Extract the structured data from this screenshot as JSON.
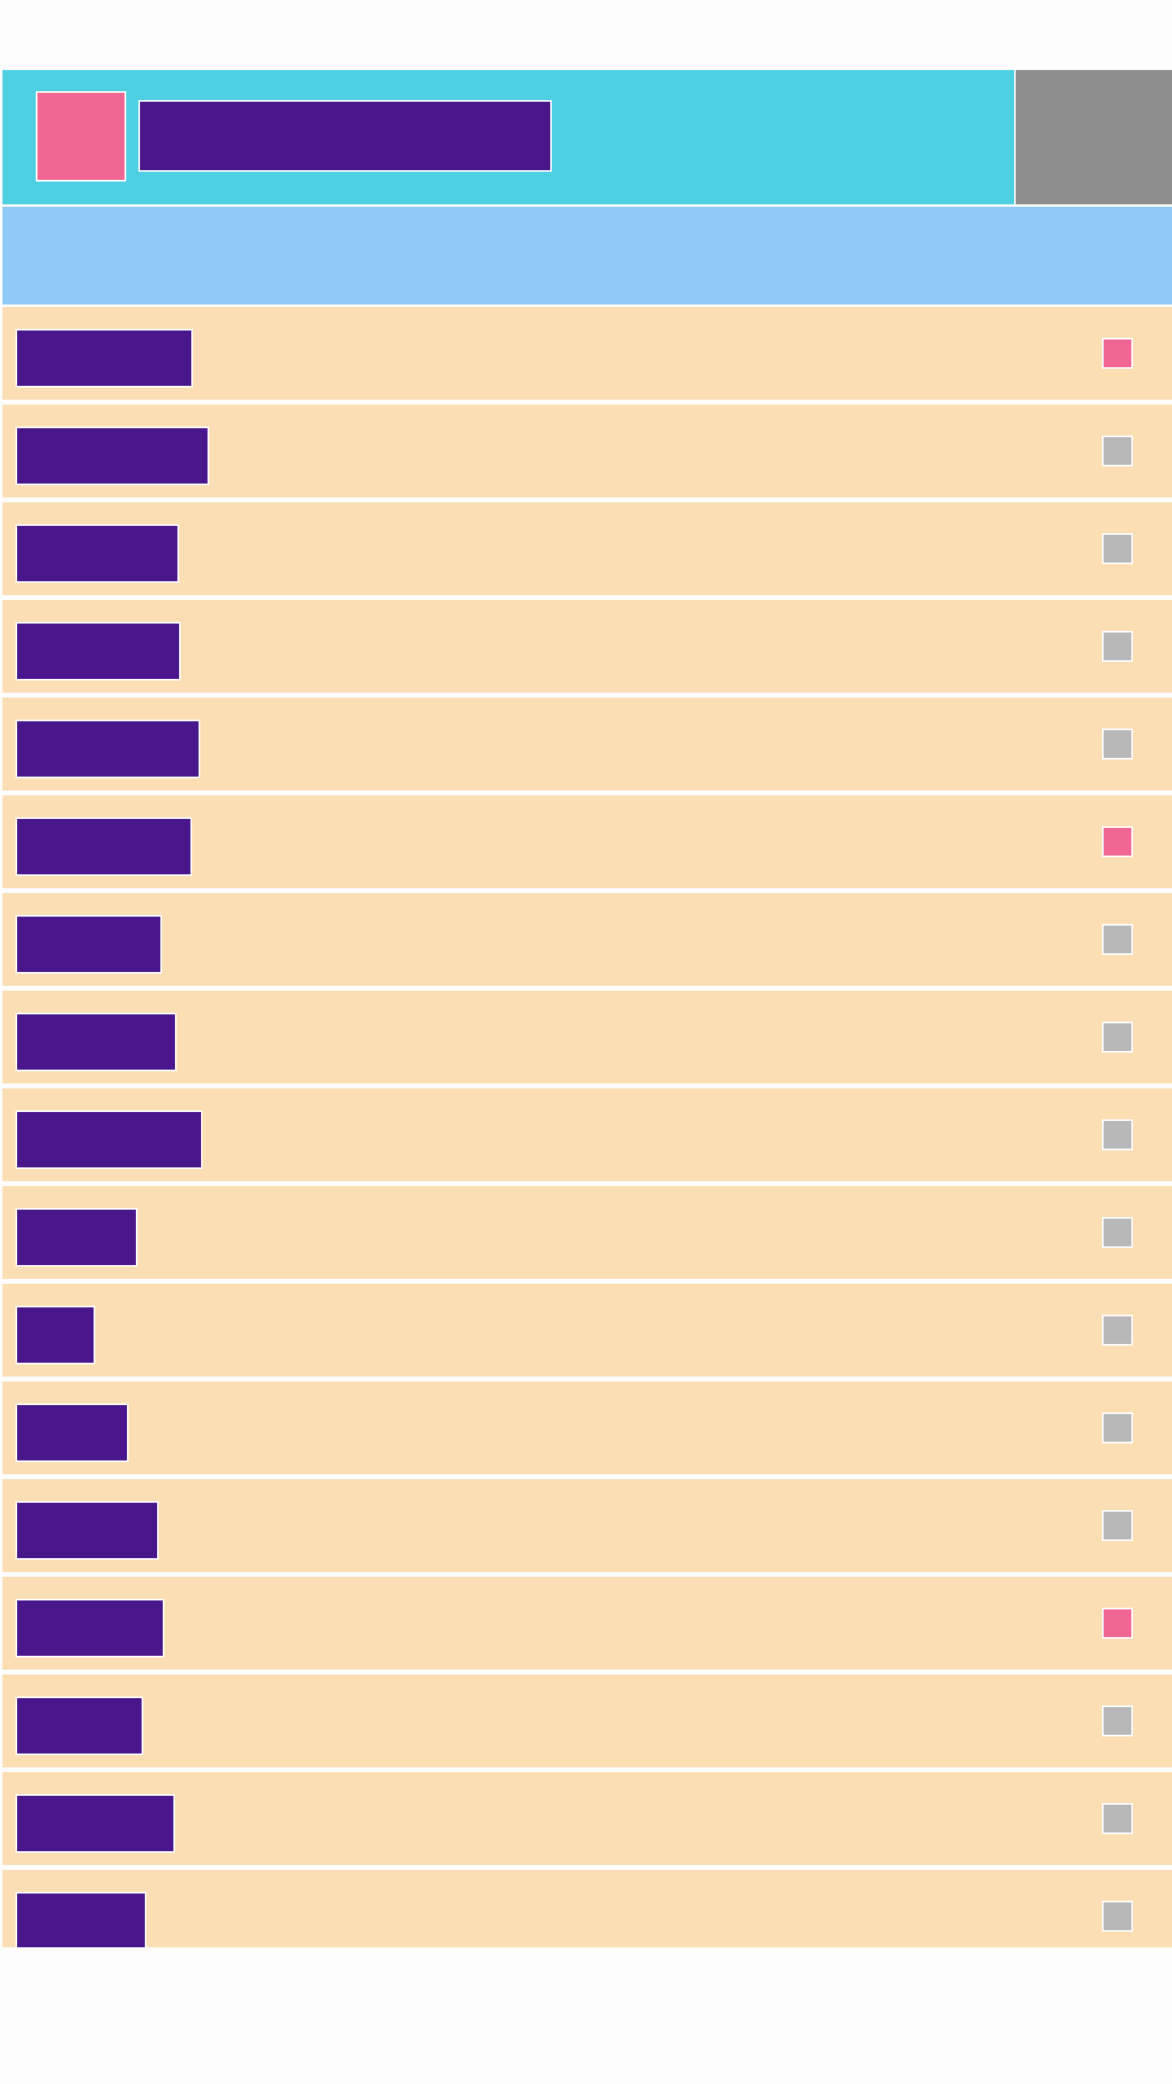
{
  "colors": {
    "app_bar": "#4fd0e2",
    "app_bar_action": "#8e8e8e",
    "subheader": "#90c9f6",
    "row": "#fbdeb3",
    "label_block": "#4a168c",
    "accent": "#f06794",
    "check_off": "#b8b8b8"
  },
  "app_bar": {
    "logo_icon": "app-logo-icon",
    "title": "",
    "action_icon": "overflow-icon"
  },
  "subheader": {
    "text": ""
  },
  "list": {
    "items": [
      {
        "label": "",
        "checked": true
      },
      {
        "label": "",
        "checked": false
      },
      {
        "label": "",
        "checked": false
      },
      {
        "label": "",
        "checked": false
      },
      {
        "label": "",
        "checked": false
      },
      {
        "label": "",
        "checked": true
      },
      {
        "label": "",
        "checked": false
      },
      {
        "label": "",
        "checked": false
      },
      {
        "label": "",
        "checked": false
      },
      {
        "label": "",
        "checked": false
      },
      {
        "label": "",
        "checked": false
      },
      {
        "label": "",
        "checked": false
      },
      {
        "label": "",
        "checked": false
      },
      {
        "label": "",
        "checked": true
      },
      {
        "label": "",
        "checked": false
      },
      {
        "label": "",
        "checked": false
      },
      {
        "label": "",
        "checked": false
      }
    ]
  }
}
